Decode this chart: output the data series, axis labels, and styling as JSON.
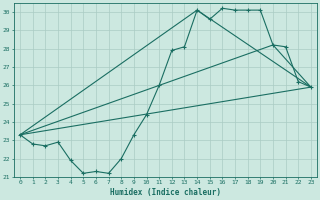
{
  "xlabel": "Humidex (Indice chaleur)",
  "bg_color": "#cce8e0",
  "grid_color": "#aaccc4",
  "line_color": "#1a6e62",
  "xlim": [
    -0.5,
    23.5
  ],
  "ylim": [
    21,
    30.5
  ],
  "xticks": [
    0,
    1,
    2,
    3,
    4,
    5,
    6,
    7,
    8,
    9,
    10,
    11,
    12,
    13,
    14,
    15,
    16,
    17,
    18,
    19,
    20,
    21,
    22,
    23
  ],
  "yticks": [
    21,
    22,
    23,
    24,
    25,
    26,
    27,
    28,
    29,
    30
  ],
  "line1_x": [
    0,
    1,
    2,
    3,
    4,
    5,
    6,
    7,
    8,
    9,
    10,
    11,
    12,
    13,
    14,
    15,
    16,
    17,
    18,
    19,
    20,
    21,
    22,
    23
  ],
  "line1_y": [
    23.3,
    22.8,
    22.7,
    22.9,
    21.9,
    21.2,
    21.3,
    21.2,
    22.0,
    23.3,
    24.4,
    26.0,
    27.9,
    28.1,
    30.1,
    29.6,
    30.2,
    30.1,
    30.1,
    30.1,
    28.2,
    28.1,
    26.2,
    25.9
  ],
  "line2_x": [
    0,
    23
  ],
  "line2_y": [
    23.3,
    25.9
  ],
  "line3_x": [
    0,
    14,
    23
  ],
  "line3_y": [
    23.3,
    30.1,
    25.9
  ],
  "line4_x": [
    0,
    20,
    23
  ],
  "line4_y": [
    23.3,
    28.2,
    25.9
  ]
}
